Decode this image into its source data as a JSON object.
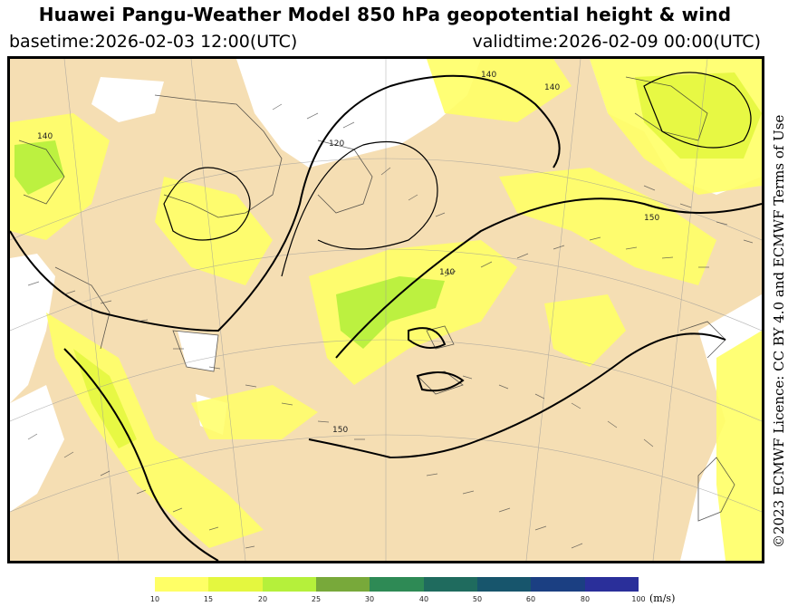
{
  "header": {
    "title": "Huawei Pangu-Weather Model 850 hPa geopotential height & wind",
    "basetime": "basetime:2026-02-03 12:00(UTC)",
    "validtime": "validtime:2026-02-09 00:00(UTC)"
  },
  "licence": "©2023 ECMWF Licence: CC BY 4.0 and ECMWF Terms of Use",
  "map": {
    "contour_labels": [
      "140",
      "120",
      "140",
      "140",
      "150",
      "150",
      "140"
    ]
  },
  "colorbar": {
    "ticks": [
      "10",
      "15",
      "20",
      "25",
      "30",
      "40",
      "50",
      "60",
      "80",
      "100"
    ],
    "unit": "(m/s)",
    "colors": [
      "#ffff66",
      "#e4f73f",
      "#b5f03b",
      "#78a93a",
      "#2e8a55",
      "#1f6b5e",
      "#17556c",
      "#1b3f82",
      "#2a2f9a"
    ]
  }
}
